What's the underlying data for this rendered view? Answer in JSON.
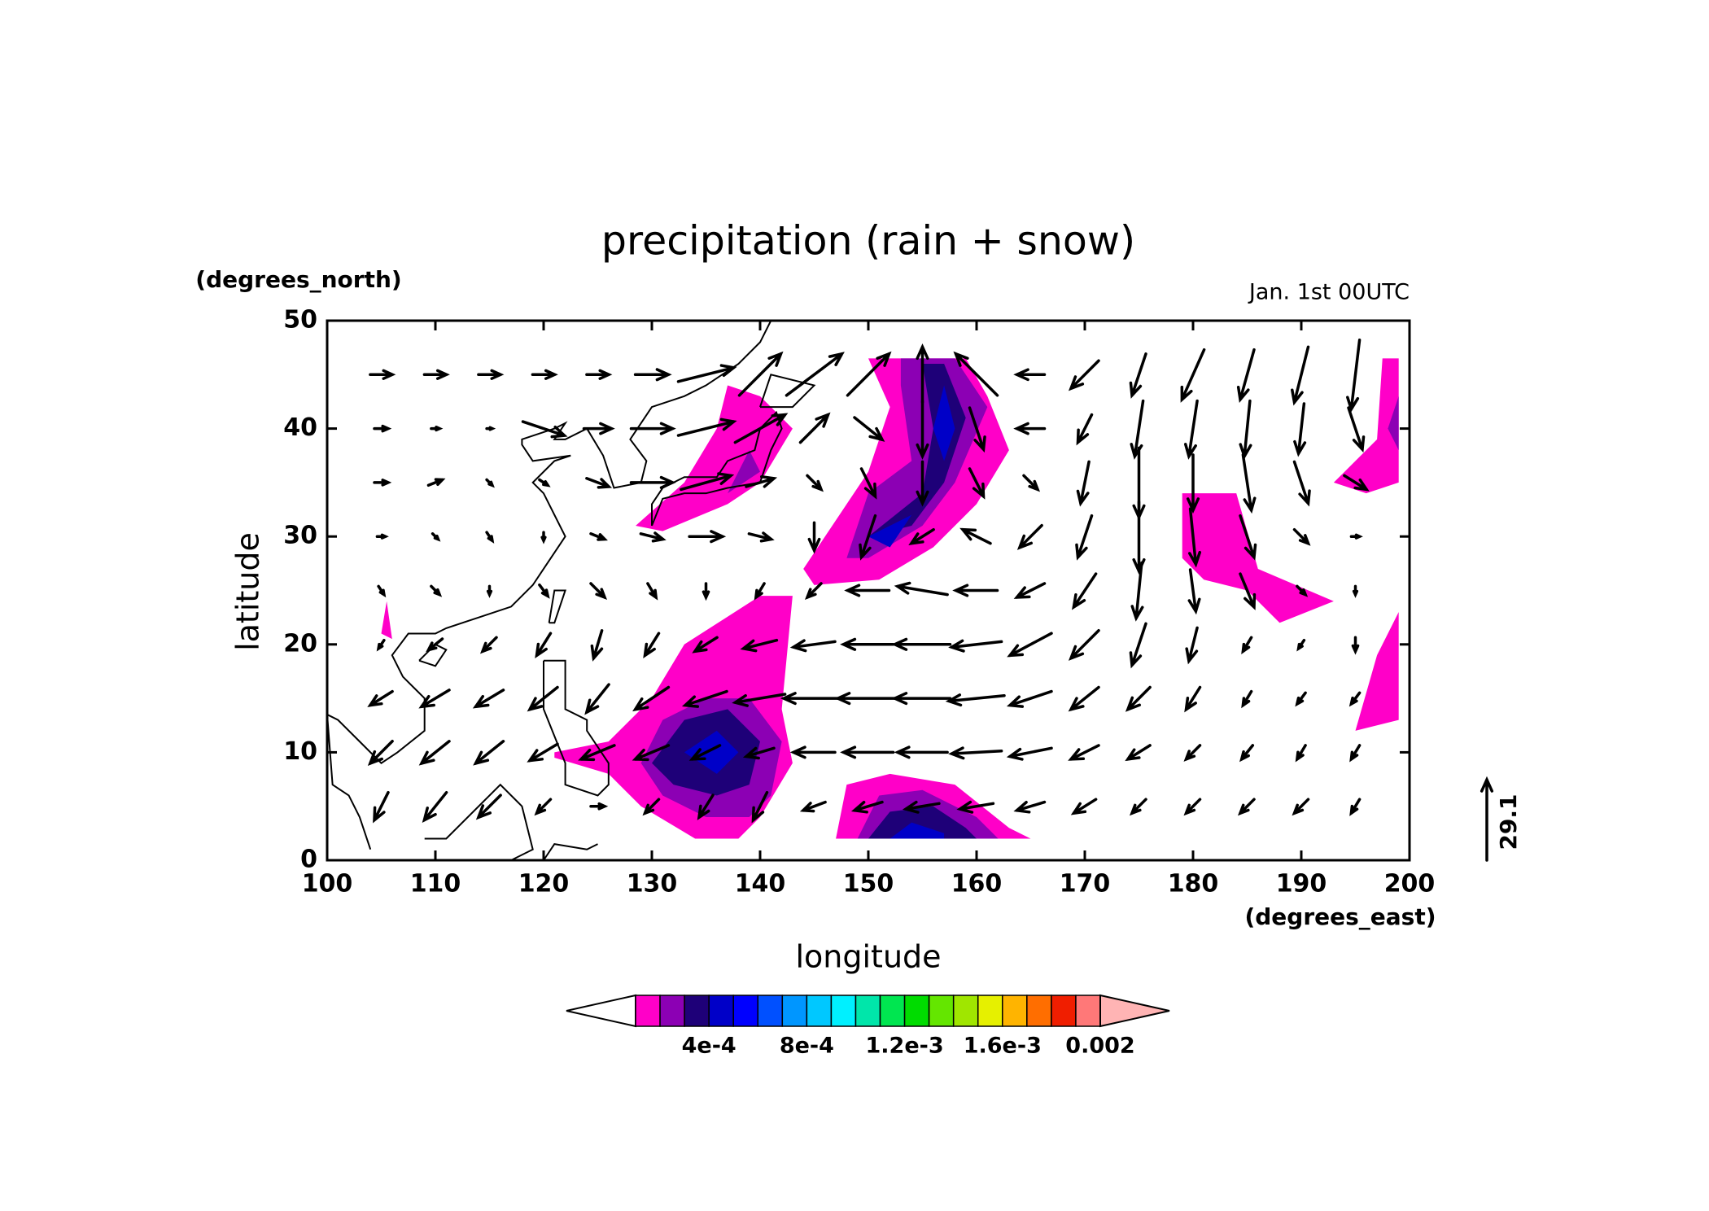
{
  "chart_data": {
    "type": "map",
    "title": "precipitation (rain + snow)",
    "annotation": "Jan. 1st 00UTC",
    "xlabel": "longitude",
    "ylabel": "latitude",
    "x_unit": "(degrees_east)",
    "y_unit": "(degrees_north)",
    "xlim": [
      100,
      200
    ],
    "ylim": [
      0,
      50
    ],
    "xticks": [
      100,
      110,
      120,
      130,
      140,
      150,
      160,
      170,
      180,
      190,
      200
    ],
    "yticks": [
      0,
      10,
      20,
      30,
      40,
      50
    ],
    "ref_vector": 29.1,
    "colorbar": {
      "levels": [
        0.0001,
        0.0002,
        0.0003,
        0.0004,
        0.0005,
        0.0006,
        0.0007,
        0.0008,
        0.0009,
        0.001,
        0.0011,
        0.0012,
        0.0013,
        0.0014,
        0.0015,
        0.0016,
        0.0017,
        0.0018,
        0.0019,
        0.002
      ],
      "colors": [
        "#ffffff",
        "#ff00c8",
        "#8c00b4",
        "#1e0078",
        "#0000c8",
        "#0000ff",
        "#0050ff",
        "#0096ff",
        "#00c8ff",
        "#00f0ff",
        "#00e6aa",
        "#00e650",
        "#00dc00",
        "#64e600",
        "#a0e600",
        "#e6f000",
        "#ffb400",
        "#ff6e00",
        "#f01e00",
        "#ff7878",
        "#ffb4b4"
      ],
      "labels": [
        {
          "value": 0.0004,
          "label": "4e-4"
        },
        {
          "value": 0.0008,
          "label": "8e-4"
        },
        {
          "value": 0.0012,
          "label": "1.2e-3"
        },
        {
          "value": 0.0016,
          "label": "1.6e-3"
        },
        0.002
      ]
    },
    "regions": [
      {
        "value": 0.0001,
        "lon": [
          128.5,
          133,
          136,
          137,
          140,
          143,
          140,
          137,
          131
        ],
        "lat": [
          31,
          35,
          40,
          44,
          43,
          40,
          35,
          33,
          30.5
        ]
      },
      {
        "value": 0.0002,
        "lon": [
          137,
          139,
          140
        ],
        "lat": [
          34,
          38,
          36
        ]
      },
      {
        "value": 0.0001,
        "lon": [
          144,
          148,
          150,
          152,
          150,
          159,
          161,
          163,
          160,
          156,
          151,
          145
        ],
        "lat": [
          27,
          33,
          36,
          42,
          46.5,
          46.5,
          43,
          38,
          33,
          29,
          26,
          25.5
        ]
      },
      {
        "value": 0.0002,
        "lon": [
          148,
          150,
          154,
          153,
          153,
          158,
          161,
          158,
          155,
          150
        ],
        "lat": [
          28,
          34,
          37,
          44,
          46.5,
          46.5,
          42,
          35,
          31,
          28
        ]
      },
      {
        "value": 0.0003,
        "lon": [
          150,
          155,
          156,
          155,
          157,
          159,
          157,
          154
        ],
        "lat": [
          30,
          34,
          40,
          46,
          46,
          41,
          35,
          31
        ]
      },
      {
        "value": 0.0004,
        "lon": [
          150,
          154,
          152
        ],
        "lat": [
          30,
          32,
          29
        ]
      },
      {
        "value": 0.0004,
        "lon": [
          156,
          157,
          158,
          157
        ],
        "lat": [
          40,
          44,
          40,
          37
        ]
      },
      {
        "value": 0.0001,
        "lon": [
          121,
          126,
          130,
          133,
          140,
          143,
          142,
          143,
          140,
          138,
          134,
          129,
          126,
          121
        ],
        "lat": [
          10,
          11,
          15,
          20,
          24.5,
          24.5,
          14,
          9,
          4,
          2,
          2,
          5,
          8,
          9.5
        ]
      },
      {
        "value": 0.0002,
        "lon": [
          129,
          131,
          135,
          139,
          142,
          141,
          139,
          135,
          131
        ],
        "lat": [
          9,
          13,
          15,
          15,
          11,
          6,
          4,
          4,
          6
        ]
      },
      {
        "value": 0.0003,
        "lon": [
          130,
          133,
          137,
          140,
          139,
          136,
          132
        ],
        "lat": [
          9,
          13,
          14,
          11,
          7,
          6,
          7
        ]
      },
      {
        "value": 0.0004,
        "lon": [
          133,
          136,
          138,
          136
        ],
        "lat": [
          10,
          12,
          10,
          8
        ]
      },
      {
        "value": 0.0001,
        "lon": [
          147,
          148,
          152,
          158,
          163,
          165
        ],
        "lat": [
          2,
          7,
          8,
          7,
          3,
          2
        ]
      },
      {
        "value": 0.0002,
        "lon": [
          149,
          151,
          155,
          160,
          162
        ],
        "lat": [
          2,
          6,
          6.5,
          4,
          2
        ]
      },
      {
        "value": 0.0003,
        "lon": [
          150,
          152,
          156,
          159,
          160
        ],
        "lat": [
          2,
          4.5,
          5,
          3,
          2
        ]
      },
      {
        "value": 0.0004,
        "lon": [
          152,
          154,
          157,
          157
        ],
        "lat": [
          2,
          3.5,
          2.5,
          2
        ]
      },
      {
        "value": 0.0001,
        "lon": [
          179,
          179,
          184,
          186,
          193,
          188,
          185,
          181
        ],
        "lat": [
          28,
          34,
          34,
          27,
          24,
          22,
          25,
          26
        ]
      },
      {
        "value": 0.0001,
        "lon": [
          193,
          197,
          197.5,
          199,
          199,
          196
        ],
        "lat": [
          35,
          39,
          46.5,
          46.5,
          35,
          34
        ]
      },
      {
        "value": 0.0002,
        "lon": [
          198,
          199,
          199
        ],
        "lat": [
          40,
          43,
          38
        ]
      },
      {
        "value": 0.0001,
        "lon": [
          195,
          197,
          199,
          199
        ],
        "lat": [
          12,
          19,
          23,
          13
        ]
      },
      {
        "value": 0.0001,
        "lon": [
          105,
          105.5,
          106
        ],
        "lat": [
          21,
          24,
          20.5
        ]
      }
    ],
    "vectors": {
      "lon": [
        105,
        110,
        115,
        120,
        125,
        130,
        135,
        140,
        145,
        150,
        155,
        160,
        165,
        170,
        175,
        180,
        185,
        190,
        195
      ],
      "lat": [
        45,
        40,
        35,
        30,
        25,
        20,
        15,
        10,
        5
      ],
      "u": [
        [
          8,
          8,
          8,
          8,
          8,
          12,
          20,
          15,
          20,
          15,
          0,
          -15,
          -10,
          -10,
          -5,
          -8,
          -5,
          -5,
          -3
        ],
        [
          5,
          3,
          2,
          15,
          10,
          15,
          20,
          18,
          10,
          10,
          0,
          5,
          -10,
          -5,
          -3,
          -3,
          -2,
          -2,
          5
        ],
        [
          5,
          5,
          2,
          3,
          8,
          15,
          18,
          10,
          5,
          5,
          0,
          5,
          5,
          -3,
          0,
          0,
          3,
          5,
          8
        ],
        [
          3,
          2,
          2,
          0,
          5,
          8,
          12,
          8,
          0,
          -5,
          -8,
          -10,
          -8,
          -5,
          0,
          2,
          5,
          5,
          3
        ],
        [
          2,
          3,
          0,
          3,
          5,
          3,
          0,
          -3,
          -5,
          -15,
          -18,
          -15,
          -10,
          -8,
          -2,
          2,
          5,
          3,
          0
        ],
        [
          -2,
          -5,
          -5,
          -5,
          -3,
          -5,
          -8,
          -12,
          -15,
          -18,
          -20,
          -18,
          -15,
          -10,
          -5,
          -3,
          -3,
          -2,
          0
        ],
        [
          -8,
          -10,
          -10,
          -10,
          -8,
          -12,
          -15,
          -18,
          -22,
          -22,
          -20,
          -20,
          -15,
          -10,
          -8,
          -5,
          -3,
          -3,
          -3
        ],
        [
          -8,
          -10,
          -10,
          -10,
          -12,
          -12,
          -10,
          -10,
          -15,
          -18,
          -18,
          -18,
          -15,
          -10,
          -8,
          -5,
          -4,
          -3,
          -3
        ],
        [
          -5,
          -8,
          -8,
          -5,
          5,
          -5,
          -5,
          -5,
          -8,
          -10,
          -12,
          -12,
          -10,
          -8,
          -5,
          -5,
          -5,
          -5,
          -3
        ]
      ],
      "v": [
        [
          0,
          0,
          0,
          0,
          0,
          0,
          5,
          15,
          15,
          15,
          20,
          15,
          0,
          -10,
          -15,
          -18,
          -18,
          -20,
          -25
        ],
        [
          0,
          0,
          0,
          -5,
          0,
          0,
          5,
          10,
          10,
          -8,
          -20,
          -15,
          0,
          -10,
          -20,
          -20,
          -20,
          -18,
          -15
        ],
        [
          0,
          2,
          -2,
          -2,
          -3,
          0,
          5,
          3,
          -5,
          -10,
          -15,
          -10,
          -5,
          -15,
          -25,
          -20,
          -20,
          -15,
          -5
        ],
        [
          0,
          -2,
          -3,
          -3,
          -2,
          -2,
          0,
          -2,
          -10,
          -15,
          -5,
          5,
          -8,
          -15,
          -25,
          -20,
          -15,
          -5,
          0
        ],
        [
          -3,
          -3,
          -3,
          -4,
          -5,
          -5,
          -5,
          -5,
          -5,
          0,
          3,
          0,
          -5,
          -12,
          -20,
          -15,
          -12,
          -3,
          -3
        ],
        [
          -3,
          -4,
          -5,
          -8,
          -10,
          -8,
          -5,
          -3,
          -2,
          0,
          0,
          -2,
          -8,
          -10,
          -15,
          -12,
          -5,
          -3,
          -5
        ],
        [
          -5,
          -6,
          -6,
          -8,
          -10,
          -8,
          -5,
          -3,
          0,
          0,
          0,
          -2,
          -5,
          -8,
          -8,
          -8,
          -5,
          -4,
          -4
        ],
        [
          -8,
          -8,
          -8,
          -6,
          -5,
          -5,
          -5,
          -3,
          0,
          0,
          0,
          -1,
          -3,
          -5,
          -5,
          -5,
          -5,
          -5,
          -5
        ],
        [
          -10,
          -10,
          -8,
          -5,
          0,
          -5,
          -8,
          -10,
          -3,
          -3,
          -2,
          -2,
          -3,
          -5,
          -5,
          -5,
          -5,
          -5,
          -5
        ]
      ]
    }
  }
}
